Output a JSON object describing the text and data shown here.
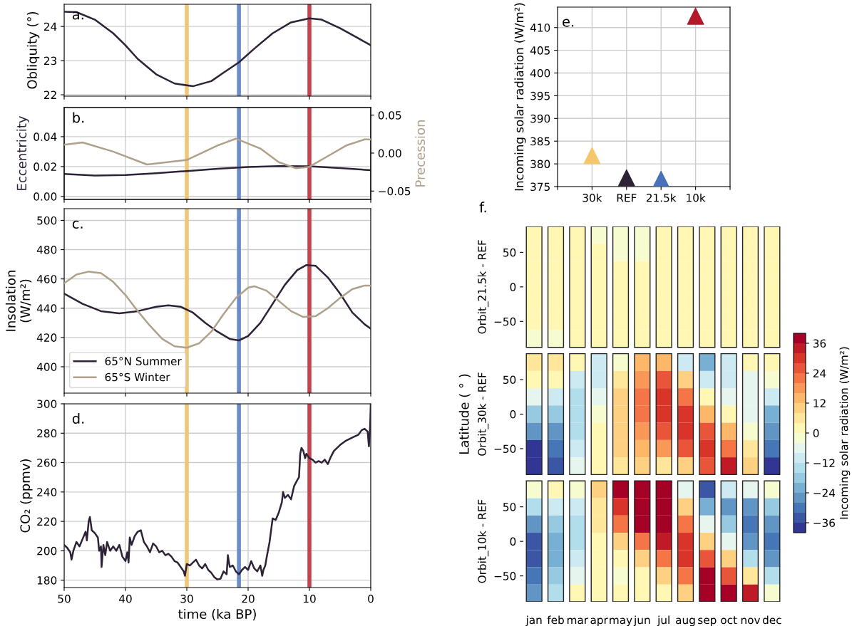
{
  "chart_data": [
    {
      "type": "line",
      "title": "a.",
      "ylabel": "Obliquity (°)",
      "xlim": [
        50,
        0
      ],
      "xticks": [
        50,
        40,
        30,
        20,
        10,
        0
      ],
      "ylim": [
        21.96,
        24.65
      ],
      "yticks": [
        22,
        23,
        24
      ],
      "grid": true,
      "tick_labels": "y",
      "ref_lines": [
        {
          "axis": "x",
          "value": 30,
          "color": "#f0c777"
        },
        {
          "axis": "x",
          "value": 21.5,
          "color": "#6b8bc9"
        },
        {
          "axis": "x",
          "value": 10,
          "color": "#c4434f"
        }
      ],
      "series": [
        {
          "color": "#2d2236",
          "x": [
            50,
            48,
            45,
            42,
            40,
            38,
            35,
            32,
            29,
            26,
            24,
            21.5,
            19,
            16,
            13,
            10,
            8,
            5,
            2,
            0
          ],
          "values": [
            24.43,
            24.42,
            24.2,
            23.8,
            23.45,
            23.05,
            22.6,
            22.33,
            22.25,
            22.4,
            22.65,
            22.95,
            23.35,
            23.8,
            24.12,
            24.24,
            24.2,
            23.95,
            23.65,
            23.45
          ]
        }
      ]
    },
    {
      "type": "line",
      "title": "b.",
      "ylabel": "Eccentricity",
      "y2label": "Precession",
      "xlim": [
        50,
        0
      ],
      "xticks": [
        50,
        40,
        30,
        20,
        10,
        0
      ],
      "ylim": [
        -0.002,
        0.0595
      ],
      "yticks": [
        {
          "value": 0,
          "label": "0.00"
        },
        0.02,
        0.04
      ],
      "y2lim": [
        -0.061,
        0.06
      ],
      "y2ticks": [
        {
          "value": -0.05,
          "label": "−0.05"
        },
        {
          "value": 0,
          "label": "0.00"
        },
        0.05
      ],
      "grid": true,
      "tick_labels": "y",
      "ref_lines": [
        {
          "axis": "x",
          "value": 30,
          "color": "#f0c777"
        },
        {
          "axis": "x",
          "value": 21.5,
          "color": "#6b8bc9"
        },
        {
          "axis": "x",
          "value": 10,
          "color": "#c4434f"
        }
      ],
      "series": [
        {
          "color": "#2d2236",
          "x": [
            50,
            45,
            40,
            35,
            30,
            25,
            20,
            15,
            10,
            5,
            0
          ],
          "values": [
            0.015,
            0.014,
            0.0143,
            0.0155,
            0.017,
            0.0185,
            0.0197,
            0.0203,
            0.0202,
            0.019,
            0.0175
          ]
        },
        {
          "color": "#aea08a",
          "axis": "y2",
          "x": [
            50,
            47,
            42,
            36.5,
            30,
            25,
            22,
            18,
            15,
            12.2,
            10,
            7,
            4,
            1,
            0
          ],
          "values": [
            0.011,
            0.014,
            0.002,
            -0.015,
            -0.009,
            0.01,
            0.019,
            0.006,
            -0.012,
            -0.02,
            -0.018,
            -0.004,
            0.01,
            0.018,
            0.018
          ]
        }
      ]
    },
    {
      "type": "line",
      "title": "c.",
      "ylabel": "Insolation\n(W/m²)",
      "xlim": [
        50,
        0
      ],
      "xticks": [
        50,
        40,
        30,
        20,
        10,
        0
      ],
      "ylim": [
        382,
        508
      ],
      "yticks": [
        400,
        420,
        440,
        460,
        480,
        500
      ],
      "grid": true,
      "tick_labels": "y",
      "legend": "bottom left",
      "ref_lines": [
        {
          "axis": "x",
          "value": 30,
          "color": "#f0c777"
        },
        {
          "axis": "x",
          "value": 21.5,
          "color": "#6b8bc9"
        },
        {
          "axis": "x",
          "value": 10,
          "color": "#c4434f"
        }
      ],
      "series": [
        {
          "name": "65°N Summer",
          "color": "#2d2236",
          "x": [
            50,
            47,
            44,
            41,
            38,
            35,
            33,
            31,
            29,
            27,
            25,
            23,
            21.5,
            20,
            18,
            16,
            14,
            12,
            10.5,
            9,
            7,
            5,
            3,
            1,
            0
          ],
          "values": [
            450,
            443,
            438,
            436.5,
            438,
            441,
            442,
            441,
            437,
            430,
            424,
            419,
            418,
            421,
            430,
            443,
            456,
            466,
            469.5,
            469,
            461,
            450,
            437,
            429,
            426
          ]
        },
        {
          "name": "65°S Winter",
          "color": "#aea08a",
          "x": [
            50,
            48,
            46,
            44,
            42,
            40,
            38,
            36,
            34,
            32,
            30,
            28,
            26,
            24,
            22,
            20,
            19,
            17,
            15,
            13,
            11,
            9,
            7,
            5,
            3,
            1,
            0
          ],
          "values": [
            457,
            463,
            465,
            464,
            458,
            449,
            438,
            428,
            419,
            414,
            413,
            416,
            424,
            436,
            447,
            454,
            455,
            452,
            445,
            438,
            434,
            434.5,
            440,
            447,
            453,
            455.5,
            455.5
          ]
        }
      ]
    },
    {
      "type": "line",
      "title": "d.",
      "xlabel": "time (ka BP)",
      "ylabel": "CO₂ (ppmv)",
      "xlim": [
        50,
        0
      ],
      "xticks": [
        50,
        40,
        30,
        20,
        10,
        0
      ],
      "ylim": [
        175,
        300
      ],
      "yticks": [
        180,
        200,
        220,
        240,
        260,
        280,
        300
      ],
      "grid": true,
      "ref_lines": [
        {
          "axis": "x",
          "value": 30,
          "color": "#f0c777"
        },
        {
          "axis": "x",
          "value": 21.5,
          "color": "#6b8bc9"
        },
        {
          "axis": "x",
          "value": 10,
          "color": "#c4434f"
        }
      ],
      "series": [
        {
          "color": "#2d2236",
          "x": [
            50,
            49.5,
            49,
            48.8,
            48.5,
            48,
            47.5,
            47,
            46.5,
            46.3,
            46,
            45.8,
            45.5,
            45,
            44.5,
            44.3,
            44,
            43.9,
            43.6,
            43.3,
            43,
            42.5,
            42,
            41.5,
            41,
            40.5,
            40,
            39.7,
            39.5,
            39.3,
            39,
            38.5,
            38,
            37.5,
            37,
            36.5,
            36,
            35.5,
            35,
            34.5,
            34,
            33.5,
            33,
            32.5,
            32,
            31.5,
            31,
            30.5,
            30.3,
            30,
            29.5,
            29,
            28.5,
            28,
            27.5,
            27,
            26.5,
            26,
            25.5,
            25,
            24.5,
            24,
            23.5,
            23.3,
            23,
            22.5,
            22,
            21.5,
            21,
            20.5,
            20,
            19.5,
            19,
            18.5,
            18,
            17.7,
            17.5,
            17.2,
            17,
            16.5,
            16,
            15.5,
            15,
            14.5,
            14.3,
            14,
            13.5,
            13,
            12.5,
            12,
            11.7,
            11.5,
            11.3,
            11,
            10.7,
            10.5,
            10,
            9.5,
            9,
            8.5,
            8,
            7.5,
            7,
            6.5,
            6,
            5,
            4,
            3,
            2,
            1.5,
            1,
            0.5,
            0.3,
            0.1,
            0
          ],
          "values": [
            204,
            202,
            199,
            194,
            200,
            206,
            203,
            208,
            213,
            207,
            220,
            223,
            214,
            212,
            209,
            200,
            203,
            189,
            204,
            197,
            206,
            200,
            203,
            200,
            204,
            196,
            193,
            199,
            192,
            209,
            204,
            210,
            213,
            214,
            206,
            203,
            199,
            205,
            203,
            199,
            200,
            197,
            198,
            196,
            193,
            192,
            189,
            186,
            183,
            191,
            190,
            192,
            194,
            190,
            188,
            191,
            187,
            185,
            182,
            180.5,
            181,
            186,
            184,
            197,
            189,
            190,
            186,
            184,
            187,
            189,
            187,
            193,
            188,
            186,
            190,
            183,
            187,
            190,
            195,
            206,
            222,
            221,
            226,
            233,
            240,
            236,
            238,
            235,
            244,
            248,
            250,
            266,
            270,
            268,
            263,
            266,
            263,
            262,
            260,
            261,
            260,
            262,
            259,
            264,
            268,
            272,
            275,
            277,
            279,
            282,
            283,
            281,
            271,
            285,
            300
          ]
        }
      ]
    },
    {
      "type": "scatter",
      "title": "e.",
      "ylabel": "Incoming solar radiation (W/m²)",
      "categories": [
        "30k",
        "REF",
        "21.5k",
        "10k"
      ],
      "ylim": [
        375,
        414.5
      ],
      "yticks": [
        375,
        380,
        385,
        390,
        395,
        400,
        405,
        410
      ],
      "grid": true,
      "marker": "triangle",
      "series": [
        {
          "values": [
            381.8,
            376.9,
            376.6,
            412.5
          ],
          "colors": [
            "#f5c76d",
            "#2d2236",
            "#4a72b8",
            "#b3182b"
          ]
        }
      ]
    },
    {
      "type": "heatmap",
      "title": "f.",
      "ylabel": "Latitude ( ° )",
      "annotations": [
        "Orbit_21.5k - REF",
        "Orbit_30k - REF",
        "Orbit_10k - REF"
      ],
      "clim": [
        -40,
        40
      ],
      "clabel": "Incoming solar radiation (W/m²)",
      "cticks": [
        {
          "value": -36,
          "label": "−36"
        },
        {
          "value": -24,
          "label": "−24"
        },
        {
          "value": -12,
          "label": "−12"
        },
        0,
        12,
        24,
        36
      ],
      "categories": [
        "jan",
        "feb",
        "mar",
        "apr",
        "may",
        "jun",
        "jul",
        "aug",
        "sep",
        "oct",
        "nov",
        "dec"
      ],
      "y_categories": [
        null,
        "50",
        null,
        "0",
        null,
        "−50",
        null,
        null,
        "50",
        null,
        "0",
        null,
        "−50",
        null,
        null,
        "50",
        null,
        "0",
        null,
        "−50",
        null
      ],
      "cells": [
        [
          2,
          2,
          2,
          -1,
          -1,
          -1,
          1,
          3,
          3,
          2,
          2,
          2
        ],
        [
          2,
          2,
          2,
          0,
          -1,
          -1,
          2,
          3,
          3,
          2,
          2,
          2
        ],
        [
          2,
          1,
          1,
          0,
          0,
          0,
          2,
          3,
          3,
          3,
          2,
          2
        ],
        [
          1,
          1,
          1,
          1,
          0,
          1,
          2,
          3,
          3,
          3,
          2,
          2
        ],
        [
          1,
          1,
          1,
          1,
          1,
          1,
          2,
          3,
          3,
          3,
          2,
          2
        ],
        [
          0,
          0,
          2,
          2,
          1,
          2,
          2,
          2,
          2,
          2,
          2,
          2
        ],
        [
          -1,
          -1,
          2,
          2,
          2,
          2,
          2,
          2,
          2,
          2,
          2,
          2
        ],
        [
          4,
          6,
          0,
          -12,
          -2,
          12,
          13,
          -12,
          -24,
          -11,
          0,
          1
        ],
        [
          3,
          0,
          -9,
          -9,
          4,
          18,
          25,
          8,
          -11,
          -10,
          -7,
          -4
        ],
        [
          -8,
          -10,
          -15,
          -6,
          8,
          22,
          30,
          22,
          2,
          -5,
          -8,
          -12
        ],
        [
          -18,
          -20,
          -16,
          -4,
          9,
          22,
          30,
          30,
          14,
          2,
          -6,
          -22
        ],
        [
          -28,
          -28,
          -15,
          0,
          9,
          19,
          24,
          29,
          24,
          12,
          -1,
          -28
        ],
        [
          -38,
          -32,
          -12,
          2,
          8,
          14,
          17,
          24,
          29,
          22,
          4,
          -31
        ],
        [
          -38,
          -36,
          -7,
          3,
          5,
          8,
          7,
          11,
          27,
          32,
          9,
          -37
        ],
        [
          -1,
          0,
          -1,
          9,
          38,
          40,
          40,
          -8,
          -33,
          -10,
          -5,
          -2
        ],
        [
          -16,
          -9,
          -10,
          6,
          30,
          40,
          40,
          9,
          -21,
          -27,
          -25,
          -20
        ],
        [
          -28,
          -18,
          -14,
          4,
          22,
          36,
          39,
          20,
          -7,
          -20,
          -30,
          -28
        ],
        [
          -34,
          -24,
          -14,
          2,
          10,
          20,
          34,
          28,
          8,
          -8,
          -28,
          -30
        ],
        [
          -35,
          -24,
          -12,
          0,
          3,
          8,
          22,
          29,
          25,
          8,
          -14,
          -26
        ],
        [
          -31,
          -20,
          -7,
          0,
          -1,
          0,
          8,
          21,
          36,
          27,
          6,
          -14
        ],
        [
          -25,
          -15,
          0,
          0,
          1,
          0,
          3,
          9,
          40,
          40,
          34,
          -4
        ]
      ]
    }
  ]
}
